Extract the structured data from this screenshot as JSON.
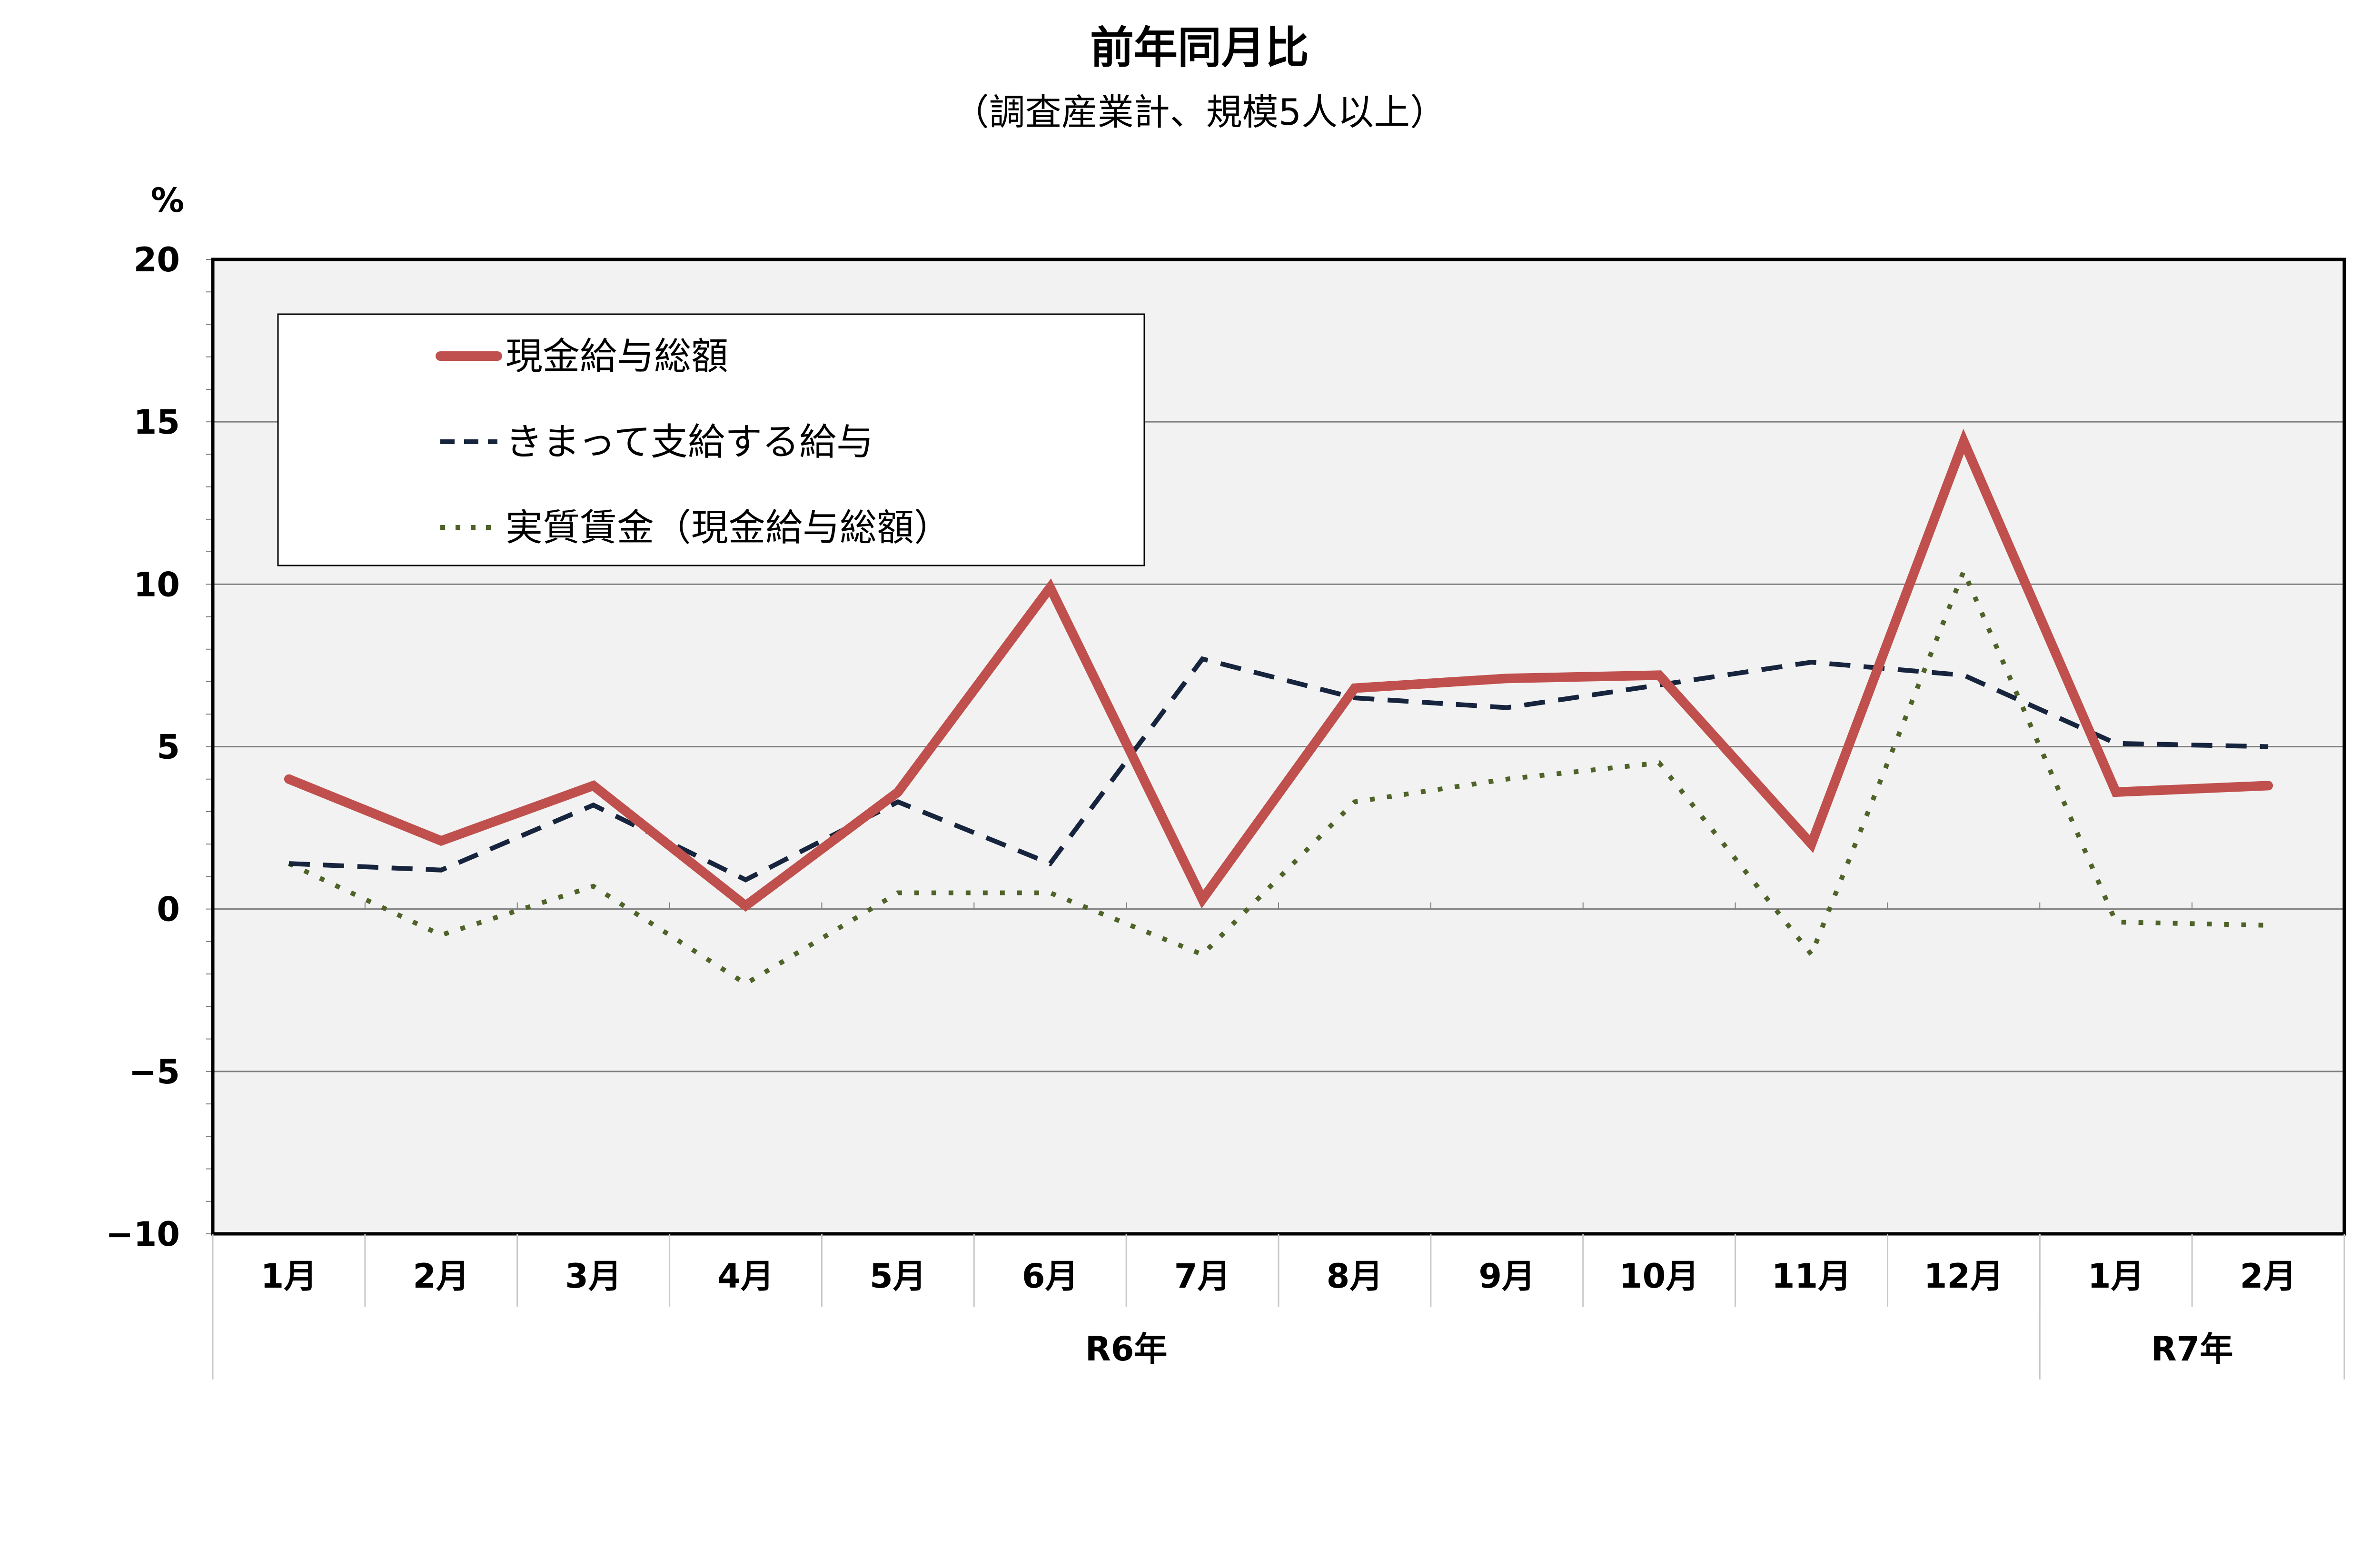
{
  "chart_data": {
    "type": "line",
    "title": "前年同月比",
    "subtitle": "（調査産業計、規模5人以上）",
    "ylabel": "%",
    "ylim": [
      -10,
      20
    ],
    "yticks": [
      "20",
      "15",
      "10",
      "5",
      "0",
      "−5",
      "−10"
    ],
    "ytick_values": [
      20,
      15,
      10,
      5,
      0,
      -5,
      -10
    ],
    "grid": true,
    "legend_position": "top-left",
    "categories": [
      "1月",
      "2月",
      "3月",
      "4月",
      "5月",
      "6月",
      "7月",
      "8月",
      "9月",
      "10月",
      "11月",
      "12月",
      "1月",
      "2月"
    ],
    "year_groups": [
      {
        "label": "R6年",
        "start": 0,
        "end": 11
      },
      {
        "label": "R7年",
        "start": 12,
        "end": 13
      }
    ],
    "series": [
      {
        "name": "現金給与総額",
        "style": "solid",
        "color": "#c0504d",
        "values": [
          4.0,
          2.1,
          3.8,
          0.1,
          3.6,
          9.9,
          0.3,
          6.8,
          7.1,
          7.2,
          2.0,
          14.4,
          3.6,
          3.8
        ]
      },
      {
        "name": "きまって支給する給与",
        "style": "dashed",
        "color": "#17243d",
        "values": [
          1.4,
          1.2,
          3.2,
          0.9,
          3.3,
          1.4,
          7.7,
          6.5,
          6.2,
          6.9,
          7.6,
          7.2,
          5.1,
          5.0
        ]
      },
      {
        "name": "実質賃金（現金給与総額）",
        "style": "dotted",
        "color": "#4f6228",
        "values": [
          1.4,
          -0.8,
          0.7,
          -2.3,
          0.5,
          0.5,
          -1.4,
          3.3,
          4.0,
          4.5,
          -1.4,
          10.4,
          -0.4,
          -0.5
        ]
      }
    ]
  }
}
